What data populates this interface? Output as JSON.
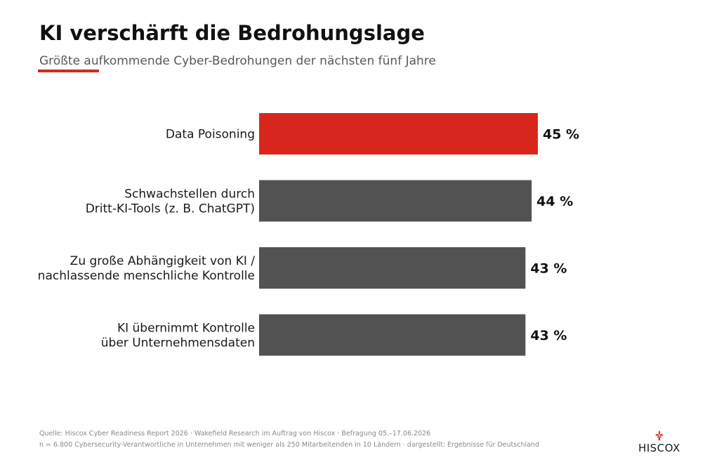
{
  "title": "KI verschärft die Bedrohungslage",
  "subtitle": "Größte aufkommende Cyber-Bedrohungen der nächsten fünf Jahre",
  "colors": {
    "accent": "#D9261C",
    "bar": "#525252"
  },
  "chart_data": {
    "type": "bar",
    "orientation": "horizontal",
    "categories": [
      [
        "Data Poisoning"
      ],
      [
        "Schwachstellen durch",
        "Dritt-KI-Tools (z. B. ChatGPT)"
      ],
      [
        "Zu große Abhängigkeit von KI /",
        "nachlassende menschliche Kontrolle"
      ],
      [
        "KI übernimmt Kontrolle",
        "über Unternehmensdaten"
      ]
    ],
    "values": [
      45,
      44,
      43,
      43
    ],
    "value_labels": [
      "45 %",
      "44 %",
      "43 %",
      "43 %"
    ],
    "highlight_index": 0,
    "xlim": [
      0,
      100
    ],
    "grid": false,
    "legend": "none"
  },
  "footer": {
    "source": "Quelle: Hiscox Cyber Readiness Report 2026 · Wakefield Research im Auftrag von Hiscox · Befragung 05.–17.06.2026",
    "note": "n = 6.800 Cybersecurity-Verantwortliche in Unternehmen mit weniger als 250 Mitarbeitenden in 10 Ländern · dargestellt: Ergebnisse für Deutschland"
  },
  "logo": {
    "text": "HISCOX",
    "icon": "fleur-de-lis-icon"
  }
}
